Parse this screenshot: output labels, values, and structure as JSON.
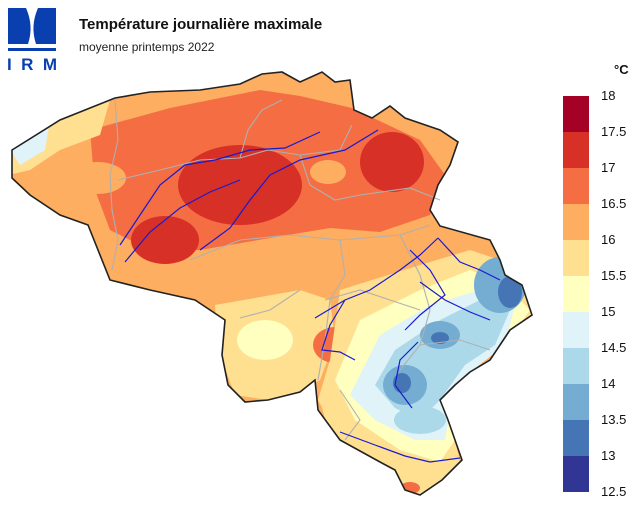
{
  "header": {
    "logo_text": "IRM",
    "title": "Température journalière maximale",
    "subtitle": "moyenne printemps 2022"
  },
  "legend": {
    "unit": "°C",
    "ticks": [
      "18",
      "17.5",
      "17",
      "16.5",
      "16",
      "15.5",
      "15",
      "14.5",
      "14",
      "13.5",
      "13",
      "12.5"
    ],
    "colors": [
      "#a50026",
      "#d73027",
      "#f46d43",
      "#fdae61",
      "#fee090",
      "#ffffbf",
      "#e0f3f8",
      "#abd9e9",
      "#74add1",
      "#4575b4",
      "#313695"
    ]
  },
  "map": {
    "country": "Belgique",
    "colors": {
      "outline": "#222222",
      "borders": "#b0b0b0",
      "rivers": "#1a1ad0"
    }
  }
}
